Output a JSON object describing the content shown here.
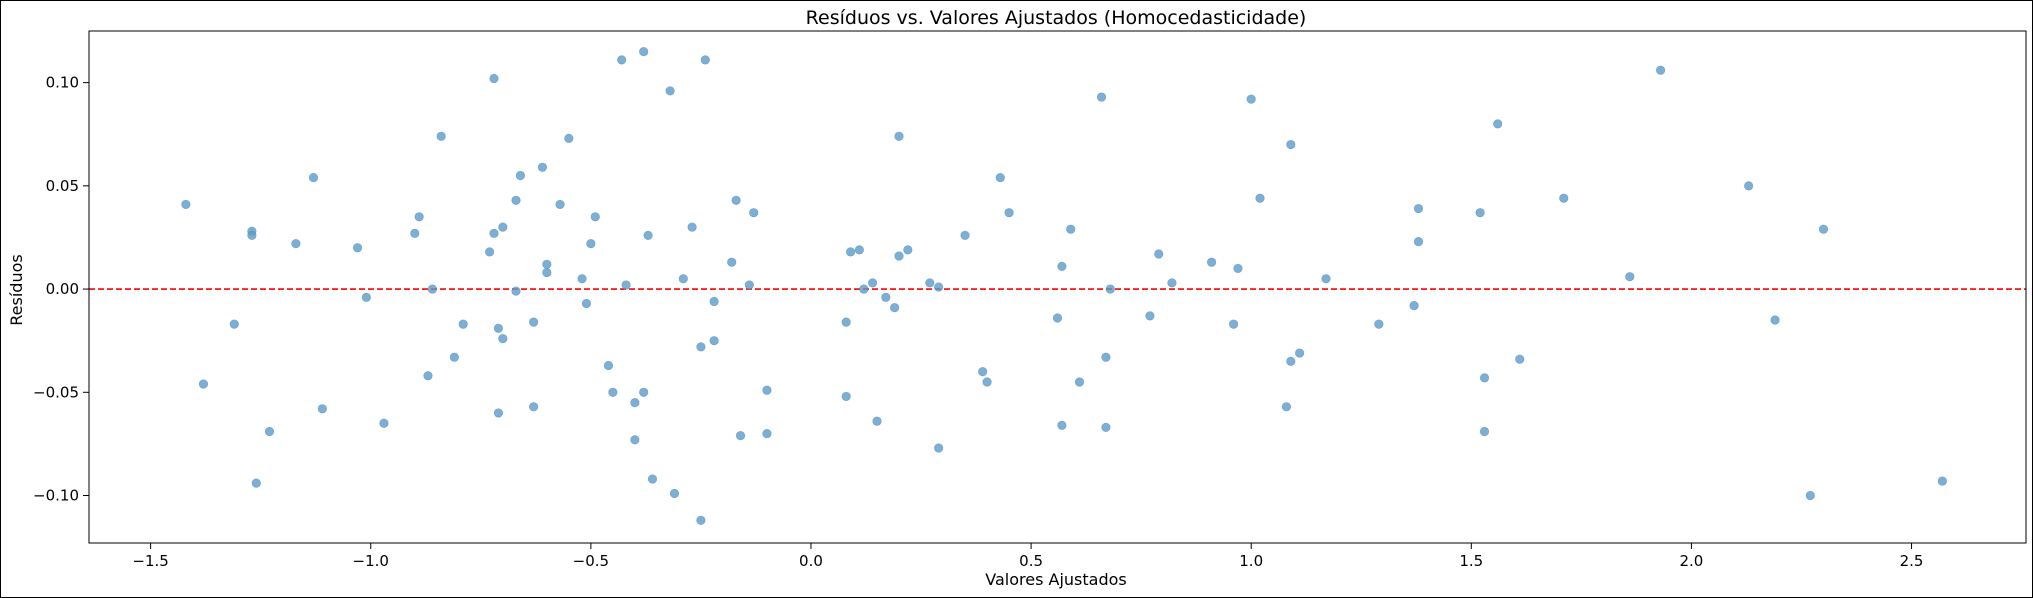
{
  "chart_data": {
    "type": "scatter",
    "title": "Resíduos vs. Valores Ajustados (Homocedasticidade)",
    "xlabel": "Valores Ajustados",
    "ylabel": "Resíduos",
    "xlim": [
      -1.64,
      2.76
    ],
    "ylim": [
      -0.123,
      0.125
    ],
    "xticks": [
      -1.5,
      -1.0,
      -0.5,
      0.0,
      0.5,
      1.0,
      1.5,
      2.0,
      2.5
    ],
    "xtick_labels": [
      "−1.5",
      "−1.0",
      "−0.5",
      "0.0",
      "0.5",
      "1.0",
      "1.5",
      "2.0",
      "2.5"
    ],
    "yticks": [
      -0.1,
      -0.05,
      0.0,
      0.05,
      0.1
    ],
    "ytick_labels": [
      "−0.10",
      "−0.05",
      "0.00",
      "0.05",
      "0.10"
    ],
    "grid": false,
    "reference_line": {
      "y": 0.0,
      "color": "#ff0000",
      "style": "dashed"
    },
    "marker_color": "#5b9bc8",
    "marker_alpha": 0.8,
    "points": [
      [
        -1.42,
        0.041
      ],
      [
        -1.38,
        -0.046
      ],
      [
        -1.31,
        -0.017
      ],
      [
        -1.27,
        0.028
      ],
      [
        -1.27,
        0.026
      ],
      [
        -1.26,
        -0.094
      ],
      [
        -1.23,
        -0.069
      ],
      [
        -1.17,
        0.022
      ],
      [
        -1.13,
        0.054
      ],
      [
        -1.11,
        -0.058
      ],
      [
        -1.03,
        0.02
      ],
      [
        -1.01,
        -0.004
      ],
      [
        -0.97,
        -0.065
      ],
      [
        -0.9,
        0.027
      ],
      [
        -0.89,
        0.035
      ],
      [
        -0.87,
        -0.042
      ],
      [
        -0.86,
        0.0
      ],
      [
        -0.84,
        0.074
      ],
      [
        -0.81,
        -0.033
      ],
      [
        -0.79,
        -0.017
      ],
      [
        -0.73,
        0.018
      ],
      [
        -0.72,
        0.027
      ],
      [
        -0.72,
        0.102
      ],
      [
        -0.71,
        -0.019
      ],
      [
        -0.71,
        -0.06
      ],
      [
        -0.7,
        -0.024
      ],
      [
        -0.7,
        0.03
      ],
      [
        -0.67,
        0.043
      ],
      [
        -0.67,
        -0.001
      ],
      [
        -0.66,
        0.055
      ],
      [
        -0.63,
        -0.016
      ],
      [
        -0.63,
        -0.057
      ],
      [
        -0.61,
        0.059
      ],
      [
        -0.6,
        0.012
      ],
      [
        -0.6,
        0.008
      ],
      [
        -0.57,
        0.041
      ],
      [
        -0.55,
        0.073
      ],
      [
        -0.52,
        0.005
      ],
      [
        -0.51,
        -0.007
      ],
      [
        -0.5,
        0.022
      ],
      [
        -0.49,
        0.035
      ],
      [
        -0.46,
        -0.037
      ],
      [
        -0.45,
        -0.05
      ],
      [
        -0.43,
        0.111
      ],
      [
        -0.42,
        0.002
      ],
      [
        -0.4,
        -0.073
      ],
      [
        -0.4,
        -0.055
      ],
      [
        -0.38,
        -0.05
      ],
      [
        -0.38,
        0.115
      ],
      [
        -0.37,
        0.026
      ],
      [
        -0.36,
        -0.092
      ],
      [
        -0.32,
        0.096
      ],
      [
        -0.31,
        -0.099
      ],
      [
        -0.29,
        0.005
      ],
      [
        -0.27,
        0.03
      ],
      [
        -0.25,
        -0.028
      ],
      [
        -0.25,
        -0.112
      ],
      [
        -0.24,
        0.111
      ],
      [
        -0.22,
        -0.006
      ],
      [
        -0.22,
        -0.025
      ],
      [
        -0.18,
        0.013
      ],
      [
        -0.17,
        0.043
      ],
      [
        -0.16,
        -0.071
      ],
      [
        -0.14,
        0.002
      ],
      [
        -0.13,
        0.037
      ],
      [
        -0.1,
        -0.049
      ],
      [
        -0.1,
        -0.07
      ],
      [
        0.08,
        -0.016
      ],
      [
        0.08,
        -0.052
      ],
      [
        0.09,
        0.018
      ],
      [
        0.11,
        0.019
      ],
      [
        0.12,
        0.0
      ],
      [
        0.14,
        0.003
      ],
      [
        0.15,
        -0.064
      ],
      [
        0.17,
        -0.004
      ],
      [
        0.19,
        -0.009
      ],
      [
        0.2,
        0.016
      ],
      [
        0.2,
        0.074
      ],
      [
        0.22,
        0.019
      ],
      [
        0.27,
        0.003
      ],
      [
        0.29,
        0.001
      ],
      [
        0.29,
        -0.077
      ],
      [
        0.35,
        0.026
      ],
      [
        0.39,
        -0.04
      ],
      [
        0.4,
        -0.045
      ],
      [
        0.43,
        0.054
      ],
      [
        0.45,
        0.037
      ],
      [
        0.56,
        -0.014
      ],
      [
        0.57,
        0.011
      ],
      [
        0.57,
        -0.066
      ],
      [
        0.59,
        0.029
      ],
      [
        0.61,
        -0.045
      ],
      [
        0.66,
        0.093
      ],
      [
        0.67,
        -0.067
      ],
      [
        0.67,
        -0.033
      ],
      [
        0.68,
        0.0
      ],
      [
        0.77,
        -0.013
      ],
      [
        0.79,
        0.017
      ],
      [
        0.82,
        0.003
      ],
      [
        0.91,
        0.013
      ],
      [
        0.96,
        -0.017
      ],
      [
        0.97,
        0.01
      ],
      [
        1.0,
        0.092
      ],
      [
        1.02,
        0.044
      ],
      [
        1.08,
        -0.057
      ],
      [
        1.09,
        0.07
      ],
      [
        1.09,
        -0.035
      ],
      [
        1.11,
        -0.031
      ],
      [
        1.17,
        0.005
      ],
      [
        1.29,
        -0.017
      ],
      [
        1.37,
        -0.008
      ],
      [
        1.38,
        0.023
      ],
      [
        1.38,
        0.039
      ],
      [
        1.52,
        0.037
      ],
      [
        1.53,
        -0.043
      ],
      [
        1.53,
        -0.069
      ],
      [
        1.56,
        0.08
      ],
      [
        1.61,
        -0.034
      ],
      [
        1.71,
        0.044
      ],
      [
        1.86,
        0.006
      ],
      [
        1.93,
        0.106
      ],
      [
        2.13,
        0.05
      ],
      [
        2.19,
        -0.015
      ],
      [
        2.27,
        -0.1
      ],
      [
        2.3,
        0.029
      ],
      [
        2.57,
        -0.093
      ]
    ]
  }
}
